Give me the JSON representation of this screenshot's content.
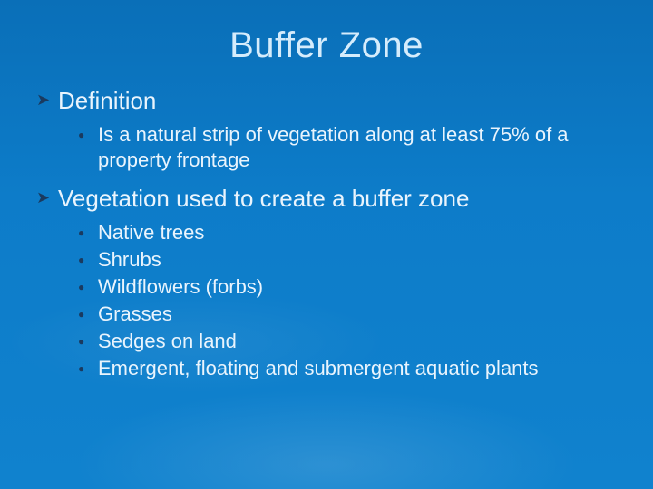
{
  "styling": {
    "background_gradient_top": "#0a6fb8",
    "background_gradient_mid": "#0d7cc9",
    "background_gradient_bottom": "#1082ce",
    "ripple_highlight": "rgba(255,255,255,0.12)",
    "text_color": "#e9f4fd",
    "title_color": "#d5ecfc",
    "bullet_color": "#1a3a5f",
    "font_family": "Arial",
    "title_fontsize": 40,
    "l1_fontsize": 26,
    "l2_fontsize": 22,
    "slide_width": 720,
    "slide_height": 540
  },
  "title": "Buffer Zone",
  "sections": [
    {
      "heading": "Definition",
      "items": [
        "Is a natural strip of vegetation along at least 75% of a property frontage"
      ]
    },
    {
      "heading": "Vegetation used to create a buffer zone",
      "items": [
        "Native trees",
        "Shrubs",
        "Wildflowers (forbs)",
        "Grasses",
        "Sedges on land",
        "Emergent, floating and submergent aquatic plants"
      ]
    }
  ]
}
